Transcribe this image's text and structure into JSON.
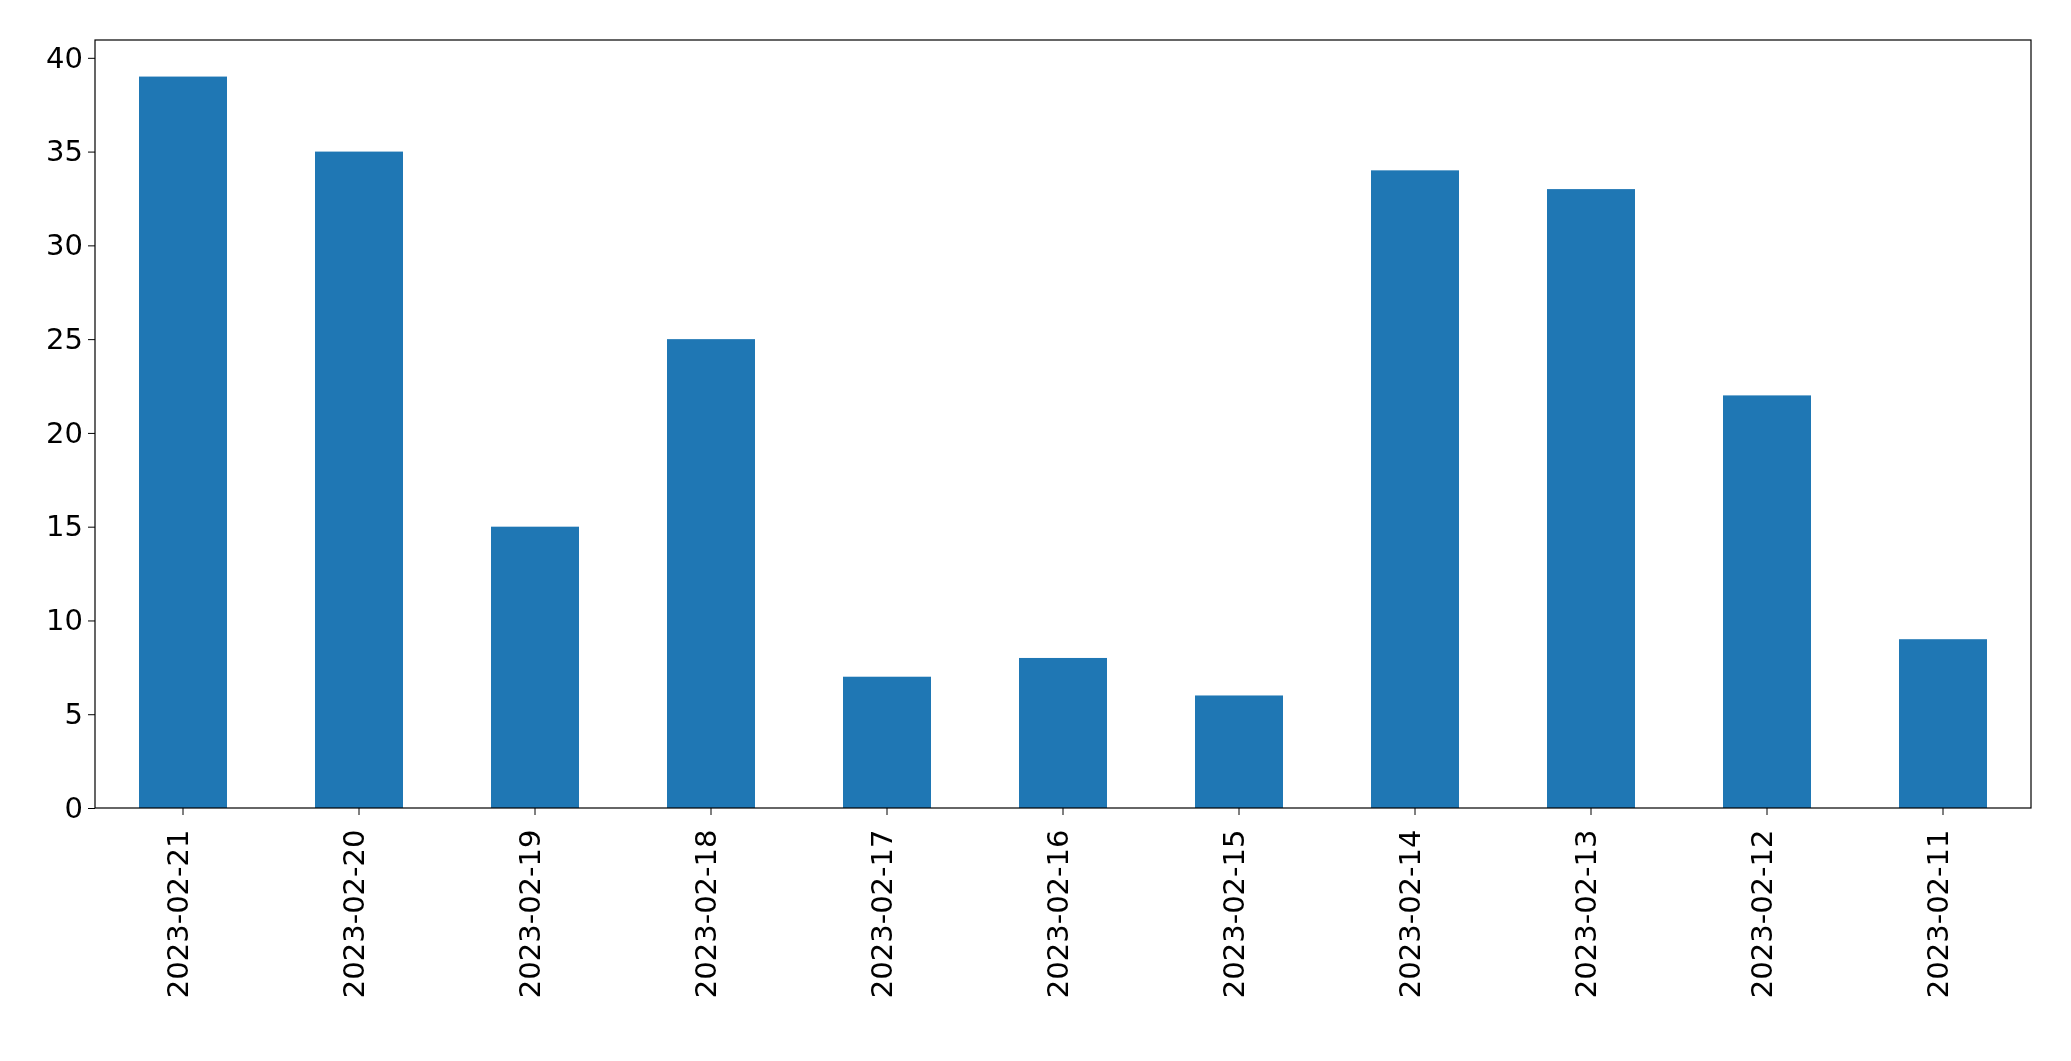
{
  "chart_data": {
    "type": "bar",
    "categories": [
      "2023-02-21",
      "2023-02-20",
      "2023-02-19",
      "2023-02-18",
      "2023-02-17",
      "2023-02-16",
      "2023-02-15",
      "2023-02-14",
      "2023-02-13",
      "2023-02-12",
      "2023-02-11"
    ],
    "values": [
      39,
      35,
      15,
      25,
      7,
      8,
      6,
      34,
      33,
      22,
      9
    ],
    "color": "#1f77b4",
    "ylim": [
      0,
      40.95
    ],
    "yticks": [
      0,
      5,
      10,
      15,
      20,
      25,
      30,
      35,
      40
    ]
  }
}
